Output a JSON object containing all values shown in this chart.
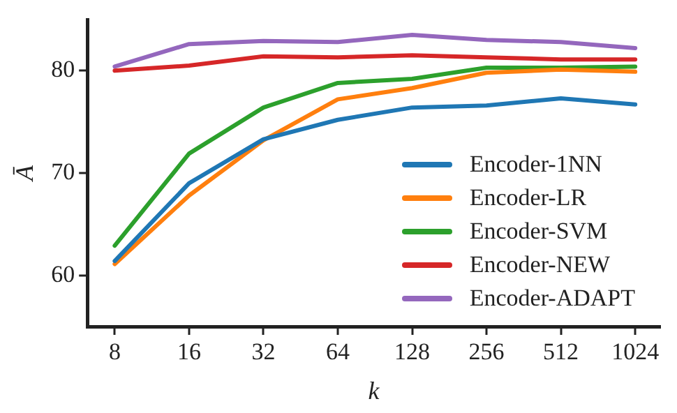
{
  "chart_data": {
    "type": "line",
    "xlabel": "k",
    "ylabel": "Ā",
    "x": [
      8,
      16,
      32,
      64,
      128,
      256,
      512,
      1024
    ],
    "log": "x",
    "xlim": [
      6.2,
      1293
    ],
    "xticks": [
      8,
      16,
      32,
      64,
      128,
      256,
      512,
      1024
    ],
    "ylim": [
      55,
      85
    ],
    "yticks": [
      60,
      70,
      80
    ],
    "grid": false,
    "legend": "bottom right",
    "marker": "none",
    "line_style": "solid",
    "series": [
      {
        "name": "Encoder-1NN",
        "color": "#1f77b4",
        "values": [
          61.4,
          69.0,
          73.3,
          75.2,
          76.4,
          76.6,
          77.3,
          76.7
        ]
      },
      {
        "name": "Encoder-LR",
        "color": "#ff7f0e",
        "values": [
          61.1,
          67.8,
          73.2,
          77.2,
          78.3,
          79.8,
          80.1,
          79.9
        ]
      },
      {
        "name": "Encoder-SVM",
        "color": "#2ca02c",
        "values": [
          62.9,
          71.9,
          76.4,
          78.8,
          79.2,
          80.3,
          80.3,
          80.4
        ]
      },
      {
        "name": "Encoder-NEW",
        "color": "#d62728",
        "values": [
          80.0,
          80.5,
          81.4,
          81.3,
          81.5,
          81.3,
          81.1,
          81.1
        ]
      },
      {
        "name": "Encoder-ADAPT",
        "color": "#9467bd",
        "values": [
          80.4,
          82.6,
          82.9,
          82.8,
          83.5,
          83.0,
          82.8,
          82.2
        ]
      }
    ]
  }
}
